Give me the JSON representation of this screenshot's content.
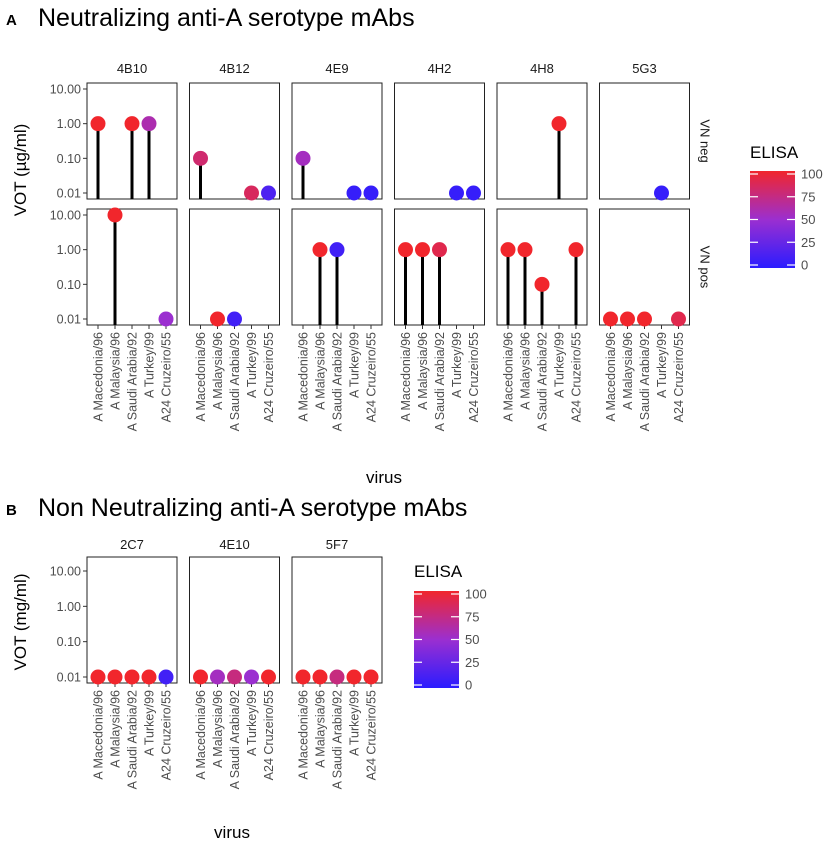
{
  "colors": {
    "low": "#2b1cff",
    "mid": "#9b2fd0",
    "high": "#f1262c",
    "stem": "#000000",
    "frame": "#222222"
  },
  "chart_data": [
    {
      "type": "lollipop",
      "panel_label": "A",
      "title": "Neutralizing anti-A serotype mAbs",
      "xlabel": "virus",
      "ylabel": "VOT (µg/ml)",
      "y_scale": "log10",
      "ylim": [
        0.01,
        10
      ],
      "y_ticks": [
        10,
        1,
        0.1,
        0.01
      ],
      "y_tick_labels": [
        "10.00",
        "1.00",
        "0.10",
        "0.01"
      ],
      "categories": [
        "A Macedonia/96",
        "A Malaysia/96",
        "A Saudi Arabia/92",
        "A Turkey/99",
        "A24 Cruzeiro/55"
      ],
      "columns": [
        "4B10",
        "4B12",
        "4E9",
        "4H2",
        "4H8",
        "5G3"
      ],
      "rows": [
        "VN neg",
        "VN pos"
      ],
      "legend": {
        "title": "ELISA",
        "range": [
          0,
          100
        ],
        "ticks": [
          "100",
          "75",
          "50",
          "25",
          "0"
        ]
      },
      "panels": [
        {
          "col": "4B10",
          "row": "VN neg",
          "points": [
            {
              "x": "A Macedonia/96",
              "y": 1,
              "elisa": 100
            },
            {
              "x": "A Saudi Arabia/92",
              "y": 1,
              "elisa": 100
            },
            {
              "x": "A Turkey/99",
              "y": 1,
              "elisa": 60
            }
          ]
        },
        {
          "col": "4B12",
          "row": "VN neg",
          "points": [
            {
              "x": "A Macedonia/96",
              "y": 0.1,
              "elisa": 80
            },
            {
              "x": "A Turkey/99",
              "y": 0.01,
              "elisa": 85
            },
            {
              "x": "A24 Cruzeiro/55",
              "y": 0.01,
              "elisa": 15
            }
          ]
        },
        {
          "col": "4E9",
          "row": "VN neg",
          "points": [
            {
              "x": "A Macedonia/96",
              "y": 0.1,
              "elisa": 55
            },
            {
              "x": "A Turkey/99",
              "y": 0.01,
              "elisa": 5
            },
            {
              "x": "A24 Cruzeiro/55",
              "y": 0.01,
              "elisa": 5
            }
          ]
        },
        {
          "col": "4H2",
          "row": "VN neg",
          "points": [
            {
              "x": "A Turkey/99",
              "y": 0.01,
              "elisa": 5
            },
            {
              "x": "A24 Cruzeiro/55",
              "y": 0.01,
              "elisa": 5
            }
          ]
        },
        {
          "col": "4H8",
          "row": "VN neg",
          "points": [
            {
              "x": "A Turkey/99",
              "y": 1,
              "elisa": 100
            }
          ]
        },
        {
          "col": "5G3",
          "row": "VN neg",
          "points": [
            {
              "x": "A Turkey/99",
              "y": 0.01,
              "elisa": 5
            }
          ]
        },
        {
          "col": "4B10",
          "row": "VN pos",
          "points": [
            {
              "x": "A Malaysia/96",
              "y": 10,
              "elisa": 100
            },
            {
              "x": "A24 Cruzeiro/55",
              "y": 0.01,
              "elisa": 50
            }
          ]
        },
        {
          "col": "4B12",
          "row": "VN pos",
          "points": [
            {
              "x": "A Malaysia/96",
              "y": 0.01,
              "elisa": 100
            },
            {
              "x": "A Saudi Arabia/92",
              "y": 0.01,
              "elisa": 10
            }
          ]
        },
        {
          "col": "4E9",
          "row": "VN pos",
          "points": [
            {
              "x": "A Malaysia/96",
              "y": 1,
              "elisa": 100
            },
            {
              "x": "A Saudi Arabia/92",
              "y": 1,
              "elisa": 10
            }
          ]
        },
        {
          "col": "4H2",
          "row": "VN pos",
          "points": [
            {
              "x": "A Macedonia/96",
              "y": 1,
              "elisa": 100
            },
            {
              "x": "A Malaysia/96",
              "y": 1,
              "elisa": 100
            },
            {
              "x": "A Saudi Arabia/92",
              "y": 1,
              "elisa": 90
            }
          ]
        },
        {
          "col": "4H8",
          "row": "VN pos",
          "points": [
            {
              "x": "A Macedonia/96",
              "y": 1,
              "elisa": 100
            },
            {
              "x": "A Malaysia/96",
              "y": 1,
              "elisa": 100
            },
            {
              "x": "A Saudi Arabia/92",
              "y": 0.1,
              "elisa": 100
            },
            {
              "x": "A24 Cruzeiro/55",
              "y": 1,
              "elisa": 100
            }
          ]
        },
        {
          "col": "5G3",
          "row": "VN pos",
          "points": [
            {
              "x": "A Macedonia/96",
              "y": 0.01,
              "elisa": 100
            },
            {
              "x": "A Malaysia/96",
              "y": 0.01,
              "elisa": 100
            },
            {
              "x": "A Saudi Arabia/92",
              "y": 0.01,
              "elisa": 100
            },
            {
              "x": "A24 Cruzeiro/55",
              "y": 0.01,
              "elisa": 90
            }
          ]
        }
      ]
    },
    {
      "type": "lollipop",
      "panel_label": "B",
      "title": "Non Neutralizing anti-A serotype mAbs",
      "xlabel": "virus",
      "ylabel": "VOT (mg/ml)",
      "y_scale": "log10",
      "ylim": [
        0.01,
        10
      ],
      "y_ticks": [
        10,
        1,
        0.1,
        0.01
      ],
      "y_tick_labels": [
        "10.00",
        "1.00",
        "0.10",
        "0.01"
      ],
      "categories": [
        "A Macedonia/96",
        "A Malaysia/96",
        "A Saudi Arabia/92",
        "A Turkey/99",
        "A24 Cruzeiro/55"
      ],
      "columns": [
        "2C7",
        "4E10",
        "5F7"
      ],
      "rows": [],
      "legend": {
        "title": "ELISA",
        "range": [
          0,
          100
        ],
        "ticks": [
          "100",
          "75",
          "50",
          "25",
          "0"
        ]
      },
      "panels": [
        {
          "col": "2C7",
          "row": "",
          "points": [
            {
              "x": "A Macedonia/96",
              "y": 0.01,
              "elisa": 100
            },
            {
              "x": "A Malaysia/96",
              "y": 0.01,
              "elisa": 100
            },
            {
              "x": "A Saudi Arabia/92",
              "y": 0.01,
              "elisa": 100
            },
            {
              "x": "A Turkey/99",
              "y": 0.01,
              "elisa": 100
            },
            {
              "x": "A24 Cruzeiro/55",
              "y": 0.01,
              "elisa": 10
            }
          ]
        },
        {
          "col": "4E10",
          "row": "",
          "points": [
            {
              "x": "A Macedonia/96",
              "y": 0.01,
              "elisa": 100
            },
            {
              "x": "A Malaysia/96",
              "y": 0.01,
              "elisa": 55
            },
            {
              "x": "A Saudi Arabia/92",
              "y": 0.01,
              "elisa": 75
            },
            {
              "x": "A Turkey/99",
              "y": 0.01,
              "elisa": 50
            },
            {
              "x": "A24 Cruzeiro/55",
              "y": 0.01,
              "elisa": 100
            }
          ]
        },
        {
          "col": "5F7",
          "row": "",
          "points": [
            {
              "x": "A Macedonia/96",
              "y": 0.01,
              "elisa": 100
            },
            {
              "x": "A Malaysia/96",
              "y": 0.01,
              "elisa": 100
            },
            {
              "x": "A Saudi Arabia/92",
              "y": 0.01,
              "elisa": 75
            },
            {
              "x": "A Turkey/99",
              "y": 0.01,
              "elisa": 100
            },
            {
              "x": "A24 Cruzeiro/55",
              "y": 0.01,
              "elisa": 100
            }
          ]
        }
      ]
    }
  ]
}
